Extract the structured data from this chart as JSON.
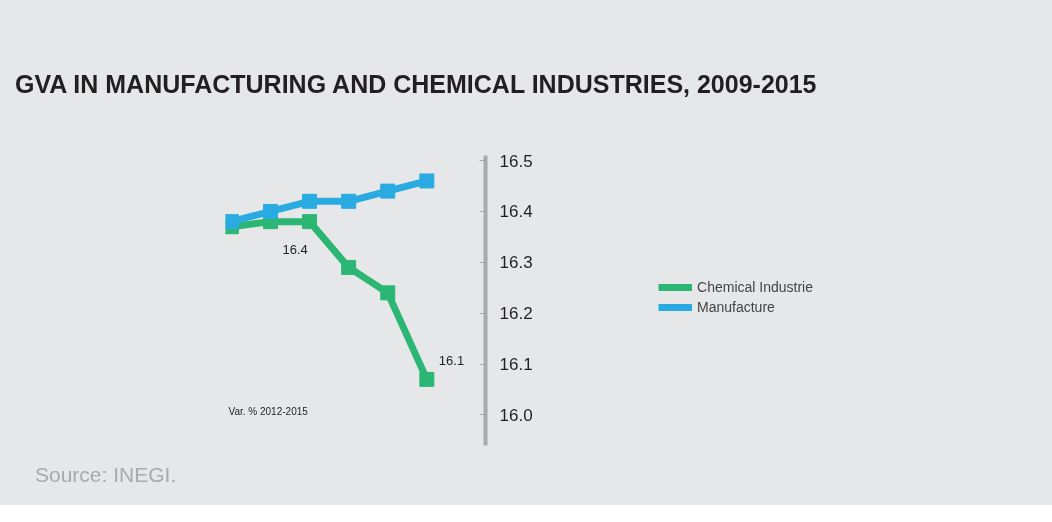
{
  "chart_data": {
    "type": "line",
    "title": "GVA IN MANUFACTURING AND CHEMICAL INDUSTRIES, 2009-2015",
    "categories": [
      null,
      null,
      null,
      null,
      null,
      null
    ],
    "series": [
      {
        "name": "Chemical Industrie",
        "color": "#2cb673",
        "values": [
          16.37,
          16.38,
          16.38,
          16.29,
          16.24,
          16.07
        ],
        "value_labels": [
          null,
          "16.4",
          null,
          null,
          null,
          "16.1"
        ]
      },
      {
        "name": "Manufacture",
        "color": "#29abe2",
        "values": [
          16.38,
          16.4,
          16.42,
          16.42,
          16.44,
          16.46
        ]
      }
    ],
    "ylim": [
      15.94,
      16.51
    ],
    "yticks": [
      {
        "value": 16,
        "label": "16.0"
      },
      16.1,
      16.2,
      16.3,
      16.4,
      16.5
    ],
    "tick_labels": "y",
    "legend": "right",
    "marker": "square",
    "line_style": "solid",
    "annotations": [
      "Var. % 2012-2015",
      "Source: INEGI."
    ]
  }
}
